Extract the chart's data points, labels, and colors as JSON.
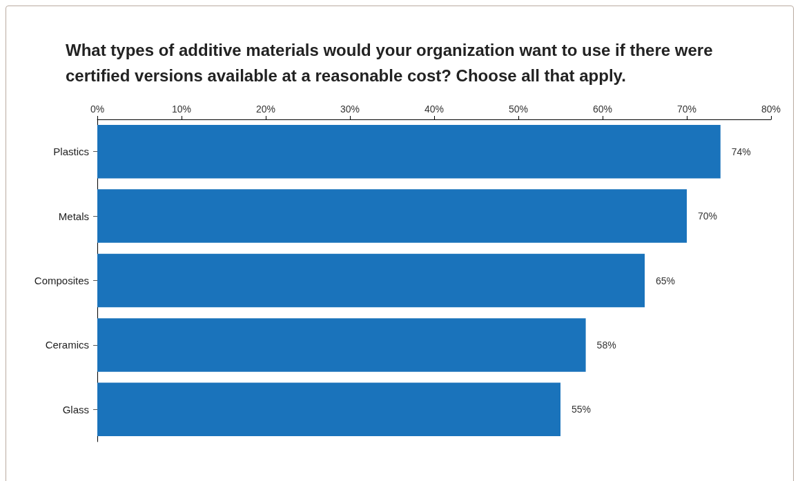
{
  "chart_data": {
    "type": "bar",
    "orientation": "horizontal",
    "title": "What types of additive materials would your organization want to use if there were certified versions available at a reasonable cost? Choose all that apply.",
    "categories": [
      "Plastics",
      "Metals",
      "Composites",
      "Ceramics",
      "Glass"
    ],
    "values": [
      74,
      70,
      65,
      58,
      55
    ],
    "value_labels": [
      "74%",
      "70%",
      "65%",
      "58%",
      "55%"
    ],
    "color": "#1a73bb",
    "xlim": [
      0,
      80
    ],
    "xticks": [
      {
        "value": 0,
        "label": "0%"
      },
      {
        "value": 10,
        "label": "10%"
      },
      {
        "value": 20,
        "label": "20%"
      },
      {
        "value": 30,
        "label": "30%"
      },
      {
        "value": 40,
        "label": "40%"
      },
      {
        "value": 50,
        "label": "50%"
      },
      {
        "value": 60,
        "label": "60%"
      },
      {
        "value": 70,
        "label": "70%"
      },
      {
        "value": 80,
        "label": "80%"
      }
    ],
    "grid": false
  }
}
